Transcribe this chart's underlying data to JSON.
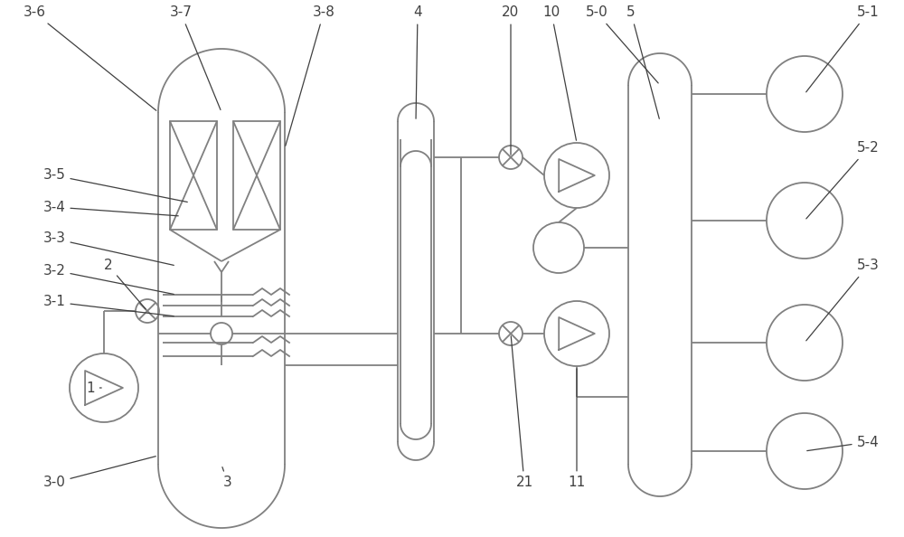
{
  "bg_color": "#ffffff",
  "line_color": "#808080",
  "lw": 1.3,
  "fig_width": 10.0,
  "fig_height": 5.94
}
